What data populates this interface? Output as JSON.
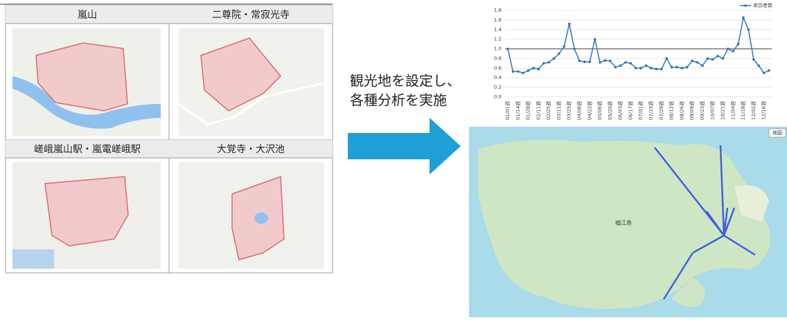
{
  "table": {
    "cells": [
      {
        "title": "嵐山"
      },
      {
        "title": "二尊院・常寂光寺"
      },
      {
        "title": "嵯峨嵐山駅・嵐電嵯峨駅"
      },
      {
        "title": "大覚寺・大沢池"
      }
    ]
  },
  "arrow_text": [
    "観光地を設定し、",
    "各種分析を実施"
  ],
  "map": {
    "button": "地図",
    "island_label": "福江島"
  },
  "chart_data": {
    "type": "line",
    "categories": [
      "01/01週",
      null,
      "01/14週",
      null,
      "01/28週",
      null,
      "02/11週",
      null,
      "02/25週",
      null,
      "03/11週",
      null,
      "03/25週",
      null,
      "04/08週",
      null,
      "04/22週",
      null,
      "05/06週",
      null,
      "05/20週",
      null,
      "06/03週",
      null,
      "06/17週",
      null,
      "07/01週",
      null,
      "07/15週",
      null,
      "07/29週",
      null,
      "08/12週",
      null,
      "08/26週",
      null,
      "09/09週",
      null,
      "09/23週",
      null,
      "10/07週",
      null,
      "10/21週",
      null,
      "11/04週",
      null,
      "11/18週",
      null,
      "12/02週",
      null,
      "12/16週",
      null
    ],
    "series": [
      {
        "name": "来訪者数",
        "color": "#2e75b6",
        "values": [
          1.0,
          0.53,
          0.53,
          0.5,
          0.55,
          0.6,
          0.58,
          0.7,
          0.72,
          0.8,
          0.9,
          1.05,
          1.52,
          1.0,
          0.75,
          0.73,
          0.73,
          1.2,
          0.72,
          0.76,
          0.75,
          0.62,
          0.65,
          0.72,
          0.7,
          0.6,
          0.6,
          0.65,
          0.6,
          0.58,
          0.58,
          0.8,
          0.62,
          0.62,
          0.6,
          0.62,
          0.75,
          0.72,
          0.65,
          0.8,
          0.78,
          0.85,
          0.8,
          1.0,
          0.95,
          1.1,
          1.65,
          1.4,
          0.78,
          0.65,
          0.5,
          0.55
        ]
      }
    ],
    "reference_line": 1.0,
    "ylim": [
      0,
      1.8
    ],
    "yticks": [
      {
        "value": 0,
        "label": "0.0"
      },
      0.2,
      0.4,
      0.6,
      0.8,
      {
        "value": 1,
        "label": "1.0"
      },
      1.2,
      1.4,
      1.6,
      1.8
    ],
    "grid": true,
    "legend": "top-right"
  }
}
